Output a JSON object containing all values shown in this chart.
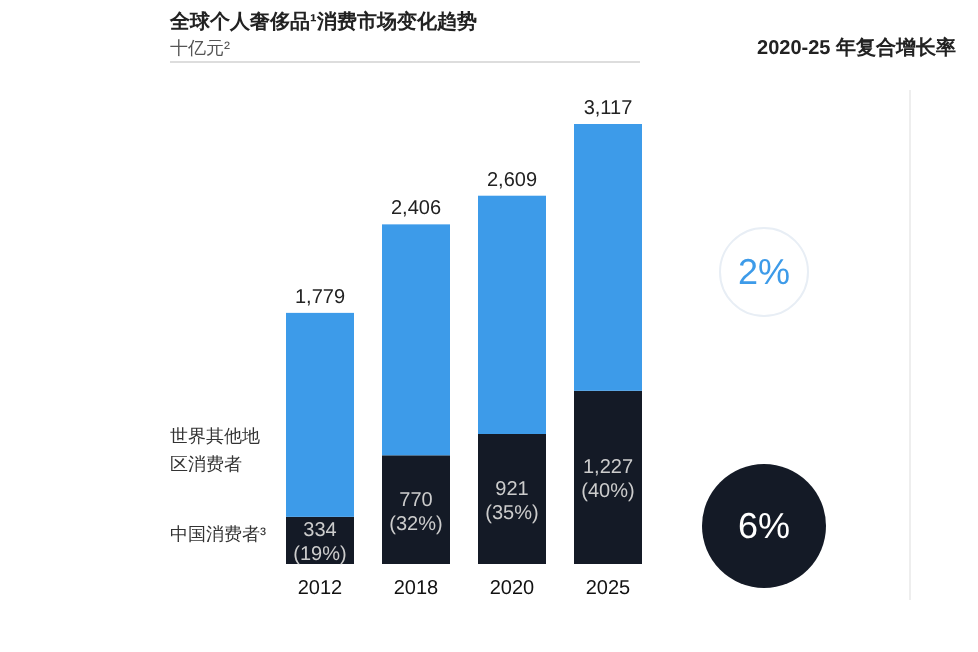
{
  "chart_data": {
    "type": "bar",
    "stacked": true,
    "title": "全球个人奢侈品¹消费市场变化趋势",
    "subtitle": "十亿元²",
    "categories": [
      "2012",
      "2018",
      "2020",
      "2025"
    ],
    "series": [
      {
        "name": "中国消费者³",
        "color": "#141a26",
        "values": [
          334,
          770,
          921,
          1227
        ],
        "value_labels": [
          "334\n(19%)",
          "770\n(32%)",
          "921\n(35%)",
          "1,227\n(40%)"
        ]
      },
      {
        "name": "世界其他地区消费者",
        "color": "#3d9be9",
        "values": [
          1445,
          1636,
          1688,
          1890
        ]
      }
    ],
    "totals": [
      "1,779",
      "2,406",
      "2,609",
      "3,117"
    ],
    "legend": "left",
    "annotations": [
      "2020-25 年复合增长率",
      "2%",
      "6%"
    ]
  }
}
